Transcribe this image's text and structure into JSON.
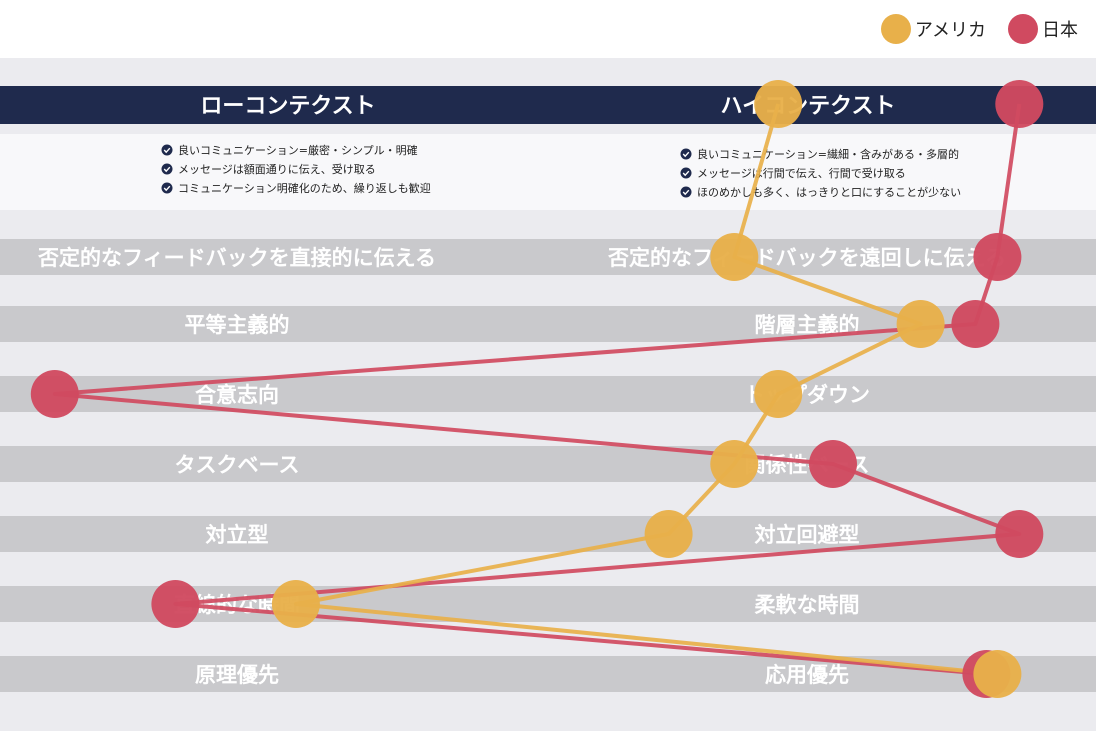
{
  "legend": {
    "position": "top-right"
  },
  "header": {
    "left": "ローコンテクスト",
    "right": "ハイコンテクスト"
  },
  "notes": {
    "left": [
      "良いコミュニケーション=厳密・シンプル・明確",
      "メッセージは額面通りに伝え、受け取る",
      "コミュニケーション明確化のため、繰り返しも歓迎"
    ],
    "right": [
      "良いコミュニケーション=繊細・含みがある・多層的",
      "メッセージは行間で伝え、行間で受け取る",
      "ほのめかしも多く、はっきりと口にすることが少ない"
    ]
  },
  "chart_data": {
    "type": "line",
    "x_scale": {
      "left_label": "ローコンテクスト",
      "right_label": "ハイコンテクスト",
      "range": [
        0,
        10
      ]
    },
    "categories": [
      {
        "left": "",
        "right": ""
      },
      {
        "left": "否定的なフィードバックを直接的に伝える",
        "right": "否定的なフィードバックを遠回しに伝える"
      },
      {
        "left": "平等主義的",
        "right": "階層主義的"
      },
      {
        "left": "合意志向",
        "right": "トップダウン"
      },
      {
        "left": "タスクベース",
        "right": "関係性ベース"
      },
      {
        "left": "対立型",
        "right": "対立回避型"
      },
      {
        "left": "直線的な時間",
        "right": "柔軟な時間"
      },
      {
        "left": "原理優先",
        "right": "応用優先"
      }
    ],
    "series": [
      {
        "name": "アメリカ",
        "color": "#e8b04a",
        "values": [
          7.1,
          6.7,
          8.4,
          7.1,
          6.7,
          6.1,
          2.7,
          9.1
        ]
      },
      {
        "name": "日本",
        "color": "#d04a60",
        "values": [
          9.3,
          9.1,
          8.9,
          0.5,
          7.6,
          9.3,
          1.6,
          9.0
        ]
      }
    ]
  }
}
